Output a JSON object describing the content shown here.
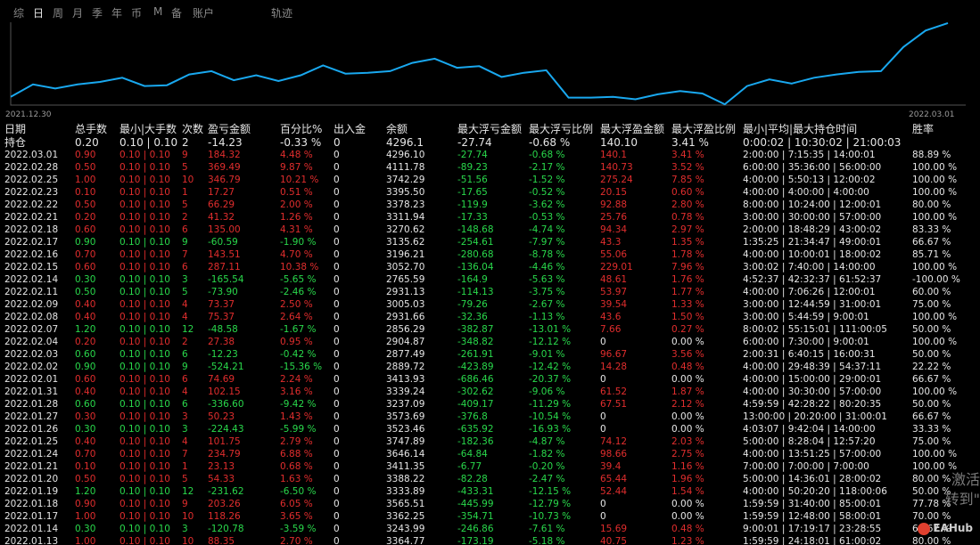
{
  "tabs": [
    "综",
    "日",
    "周",
    "月",
    "季",
    "年",
    "币",
    "M",
    "备",
    "账户"
  ],
  "active_tab": 1,
  "track_label": "轨迹",
  "chart_data": {
    "type": "line",
    "x_start_label": "2021.12.30",
    "x_end_label": "2022.03.01",
    "y_norm": [
      0.1,
      0.25,
      0.2,
      0.25,
      0.28,
      0.33,
      0.23,
      0.24,
      0.37,
      0.41,
      0.3,
      0.36,
      0.29,
      0.36,
      0.48,
      0.38,
      0.39,
      0.41,
      0.51,
      0.56,
      0.45,
      0.47,
      0.34,
      0.39,
      0.42,
      0.09,
      0.09,
      0.1,
      0.07,
      0.13,
      0.17,
      0.14,
      0.01,
      0.23,
      0.31,
      0.26,
      0.33,
      0.37,
      0.4,
      0.41,
      0.7,
      0.9,
      0.99
    ],
    "line_color": "#19a8ef"
  },
  "table": {
    "headers": [
      "日期",
      "总手数",
      "最小|大手数",
      "次数",
      "盈亏金额",
      "百分比%",
      "出入金",
      "余额",
      "最大浮亏金额",
      "最大浮亏比例",
      "最大浮盈金额",
      "最大浮盈比例",
      "最小|平均|最大持仓时间",
      "胜率"
    ],
    "hold_row": [
      "持仓",
      "0.20",
      "0.10 | 0.10",
      "2",
      "-14.23",
      "-0.33 %",
      "0",
      "4296.1",
      "-27.74",
      "-0.68 %",
      "140.10",
      "3.41 %",
      "0:00:02 | 10:30:02 | 21:00:03",
      ""
    ],
    "rows": [
      [
        "2022.03.01",
        "0.90",
        "0.10 | 0.10",
        "9",
        "184.32",
        "4.48 %",
        "0",
        "4296.10",
        "-27.74",
        "-0.68 %",
        "140.1",
        "3.41 %",
        "2:00:00 | 7:15:35 | 14:00:01",
        "88.89 %"
      ],
      [
        "2022.02.28",
        "0.50",
        "0.10 | 0.10",
        "5",
        "369.49",
        "9.87 %",
        "0",
        "4111.78",
        "-89.23",
        "-2.17 %",
        "140.73",
        "3.52 %",
        "6:00:00 | 35:36:00 | 56:00:00",
        "100.00 %"
      ],
      [
        "2022.02.25",
        "1.00",
        "0.10 | 0.10",
        "10",
        "346.79",
        "10.21 %",
        "0",
        "3742.29",
        "-51.56",
        "-1.52 %",
        "275.24",
        "7.85 %",
        "4:00:00 | 5:50:13 | 12:00:02",
        "100.00 %"
      ],
      [
        "2022.02.23",
        "0.10",
        "0.10 | 0.10",
        "1",
        "17.27",
        "0.51 %",
        "0",
        "3395.50",
        "-17.65",
        "-0.52 %",
        "20.15",
        "0.60 %",
        "4:00:00 | 4:00:00 | 4:00:00",
        "100.00 %"
      ],
      [
        "2022.02.22",
        "0.50",
        "0.10 | 0.10",
        "5",
        "66.29",
        "2.00 %",
        "0",
        "3378.23",
        "-119.9",
        "-3.62 %",
        "92.88",
        "2.80 %",
        "8:00:00 | 10:24:00 | 12:00:01",
        "80.00 %"
      ],
      [
        "2022.02.21",
        "0.20",
        "0.10 | 0.10",
        "2",
        "41.32",
        "1.26 %",
        "0",
        "3311.94",
        "-17.33",
        "-0.53 %",
        "25.76",
        "0.78 %",
        "3:00:00 | 30:00:00 | 57:00:00",
        "100.00 %"
      ],
      [
        "2022.02.18",
        "0.60",
        "0.10 | 0.10",
        "6",
        "135.00",
        "4.31 %",
        "0",
        "3270.62",
        "-148.68",
        "-4.74 %",
        "94.34",
        "2.97 %",
        "2:00:00 | 18:48:29 | 43:00:02",
        "83.33 %"
      ],
      [
        "2022.02.17",
        "0.90",
        "0.10 | 0.10",
        "9",
        "-60.59",
        "-1.90 %",
        "0",
        "3135.62",
        "-254.61",
        "-7.97 %",
        "43.3",
        "1.35 %",
        "1:35:25 | 21:34:47 | 49:00:01",
        "66.67 %"
      ],
      [
        "2022.02.16",
        "0.70",
        "0.10 | 0.10",
        "7",
        "143.51",
        "4.70 %",
        "0",
        "3196.21",
        "-280.68",
        "-8.78 %",
        "55.06",
        "1.78 %",
        "4:00:00 | 10:00:01 | 18:00:02",
        "85.71 %"
      ],
      [
        "2022.02.15",
        "0.60",
        "0.10 | 0.10",
        "6",
        "287.11",
        "10.38 %",
        "0",
        "3052.70",
        "-136.04",
        "-4.46 %",
        "229.01",
        "7.96 %",
        "3:00:02 | 7:40:00 | 14:00:00",
        "100.00 %"
      ],
      [
        "2022.02.14",
        "0.30",
        "0.10 | 0.10",
        "3",
        "-165.54",
        "-5.65 %",
        "0",
        "2765.59",
        "-164.9",
        "-5.63 %",
        "48.61",
        "1.76 %",
        "4:52:37 | 42:32:37 | 61:52:37",
        "-100.00 %"
      ],
      [
        "2022.02.11",
        "0.50",
        "0.10 | 0.10",
        "5",
        "-73.90",
        "-2.46 %",
        "0",
        "2931.13",
        "-114.13",
        "-3.75 %",
        "53.97",
        "1.77 %",
        "4:00:00 | 7:06:26 | 12:00:01",
        "60.00 %"
      ],
      [
        "2022.02.09",
        "0.40",
        "0.10 | 0.10",
        "4",
        "73.37",
        "2.50 %",
        "0",
        "3005.03",
        "-79.26",
        "-2.67 %",
        "39.54",
        "1.33 %",
        "3:00:00 | 12:44:59 | 31:00:01",
        "75.00 %"
      ],
      [
        "2022.02.08",
        "0.40",
        "0.10 | 0.10",
        "4",
        "75.37",
        "2.64 %",
        "0",
        "2931.66",
        "-32.36",
        "-1.13 %",
        "43.6",
        "1.50 %",
        "3:00:00 | 5:44:59 | 9:00:01",
        "100.00 %"
      ],
      [
        "2022.02.07",
        "1.20",
        "0.10 | 0.10",
        "12",
        "-48.58",
        "-1.67 %",
        "0",
        "2856.29",
        "-382.87",
        "-13.01 %",
        "7.66",
        "0.27 %",
        "8:00:02 | 55:15:01 | 111:00:05",
        "50.00 %"
      ],
      [
        "2022.02.04",
        "0.20",
        "0.10 | 0.10",
        "2",
        "27.38",
        "0.95 %",
        "0",
        "2904.87",
        "-348.82",
        "-12.12 %",
        "0",
        "0.00 %",
        "6:00:00 | 7:30:00 | 9:00:01",
        "100.00 %"
      ],
      [
        "2022.02.03",
        "0.60",
        "0.10 | 0.10",
        "6",
        "-12.23",
        "-0.42 %",
        "0",
        "2877.49",
        "-261.91",
        "-9.01 %",
        "96.67",
        "3.56 %",
        "2:00:31 | 6:40:15 | 16:00:31",
        "50.00 %"
      ],
      [
        "2022.02.02",
        "0.90",
        "0.10 | 0.10",
        "9",
        "-524.21",
        "-15.36 %",
        "0",
        "2889.72",
        "-423.89",
        "-12.42 %",
        "14.28",
        "0.48 %",
        "4:00:00 | 29:48:39 | 54:37:11",
        "22.22 %"
      ],
      [
        "2022.02.01",
        "0.60",
        "0.10 | 0.10",
        "6",
        "74.69",
        "2.24 %",
        "0",
        "3413.93",
        "-686.46",
        "-20.37 %",
        "0",
        "0.00 %",
        "4:00:00 | 15:00:00 | 29:00:01",
        "66.67 %"
      ],
      [
        "2022.01.31",
        "0.40",
        "0.10 | 0.10",
        "4",
        "102.15",
        "3.16 %",
        "0",
        "3339.24",
        "-302.62",
        "-9.06 %",
        "61.52",
        "1.87 %",
        "4:00:00 | 30:30:00 | 57:00:00",
        "100.00 %"
      ],
      [
        "2022.01.28",
        "0.60",
        "0.10 | 0.10",
        "6",
        "-336.60",
        "-9.42 %",
        "0",
        "3237.09",
        "-409.17",
        "-11.29 %",
        "67.51",
        "2.12 %",
        "4:59:59 | 42:28:22 | 80:20:35",
        "50.00 %"
      ],
      [
        "2022.01.27",
        "0.30",
        "0.10 | 0.10",
        "3",
        "50.23",
        "1.43 %",
        "0",
        "3573.69",
        "-376.8",
        "-10.54 %",
        "0",
        "0.00 %",
        "13:00:00 | 20:20:00 | 31:00:01",
        "66.67 %"
      ],
      [
        "2022.01.26",
        "0.30",
        "0.10 | 0.10",
        "3",
        "-224.43",
        "-5.99 %",
        "0",
        "3523.46",
        "-635.92",
        "-16.93 %",
        "0",
        "0.00 %",
        "4:03:07 | 9:42:04 | 14:00:00",
        "33.33 %"
      ],
      [
        "2022.01.25",
        "0.40",
        "0.10 | 0.10",
        "4",
        "101.75",
        "2.79 %",
        "0",
        "3747.89",
        "-182.36",
        "-4.87 %",
        "74.12",
        "2.03 %",
        "5:00:00 | 8:28:04 | 12:57:20",
        "75.00 %"
      ],
      [
        "2022.01.24",
        "0.70",
        "0.10 | 0.10",
        "7",
        "234.79",
        "6.88 %",
        "0",
        "3646.14",
        "-64.84",
        "-1.82 %",
        "98.66",
        "2.75 %",
        "4:00:00 | 13:51:25 | 57:00:00",
        "100.00 %"
      ],
      [
        "2022.01.21",
        "0.10",
        "0.10 | 0.10",
        "1",
        "23.13",
        "0.68 %",
        "0",
        "3411.35",
        "-6.77",
        "-0.20 %",
        "39.4",
        "1.16 %",
        "7:00:00 | 7:00:00 | 7:00:00",
        "100.00 %"
      ],
      [
        "2022.01.20",
        "0.50",
        "0.10 | 0.10",
        "5",
        "54.33",
        "1.63 %",
        "0",
        "3388.22",
        "-82.28",
        "-2.47 %",
        "65.44",
        "1.96 %",
        "5:00:00 | 14:36:01 | 28:00:02",
        "80.00 %"
      ],
      [
        "2022.01.19",
        "1.20",
        "0.10 | 0.10",
        "12",
        "-231.62",
        "-6.50 %",
        "0",
        "3333.89",
        "-433.31",
        "-12.15 %",
        "52.44",
        "1.54 %",
        "4:00:00 | 50:20:20 | 118:00:06",
        "50.00 %"
      ],
      [
        "2022.01.18",
        "0.90",
        "0.10 | 0.10",
        "9",
        "203.26",
        "6.05 %",
        "0",
        "3565.51",
        "-445.99",
        "-12.79 %",
        "0",
        "0.00 %",
        "1:59:59 | 31:40:00 | 85:00:01",
        "77.78 %"
      ],
      [
        "2022.01.17",
        "1.00",
        "0.10 | 0.10",
        "10",
        "118.26",
        "3.65 %",
        "0",
        "3362.25",
        "-354.71",
        "-10.73 %",
        "0",
        "0.00 %",
        "1:59:59 | 12:48:00 | 58:00:01",
        "70.00 %"
      ],
      [
        "2022.01.14",
        "0.30",
        "0.10 | 0.10",
        "3",
        "-120.78",
        "-3.59 %",
        "0",
        "3243.99",
        "-246.86",
        "-7.61 %",
        "15.69",
        "0.48 %",
        "9:00:01 | 17:19:17 | 23:28:55",
        "66.67 %"
      ],
      [
        "2022.01.13",
        "1.00",
        "0.10 | 0.10",
        "10",
        "88.35",
        "2.70 %",
        "0",
        "3364.77",
        "-173.19",
        "-5.18 %",
        "40.75",
        "1.23 %",
        "1:59:59 | 24:18:01 | 61:00:02",
        "80.00 %"
      ]
    ]
  },
  "watermark_lines": [
    "激活",
    "转到\""
  ],
  "logo_text": "EAHub"
}
